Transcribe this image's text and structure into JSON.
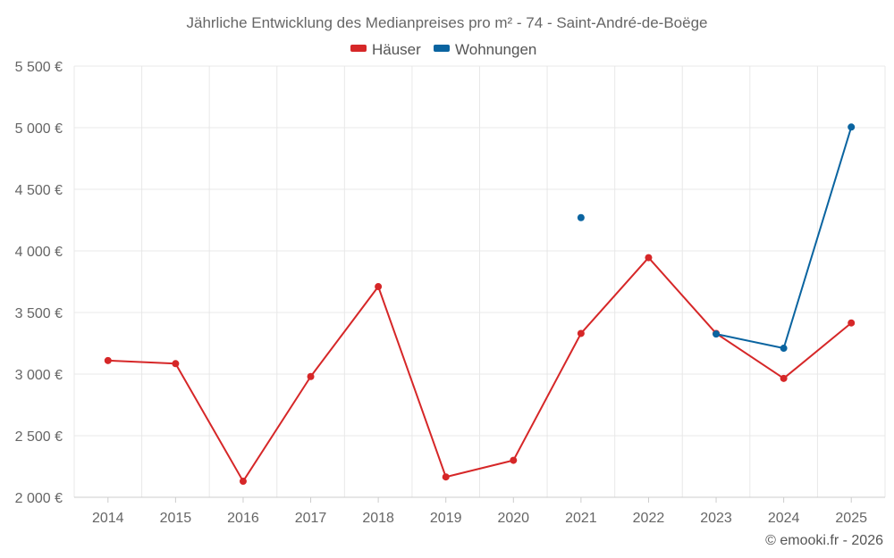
{
  "chart_data": {
    "type": "line",
    "title": "Jährliche Entwicklung des Medianpreises pro m² - 74 - Saint-André-de-Boëge",
    "categories": [
      "2014",
      "2015",
      "2016",
      "2017",
      "2018",
      "2019",
      "2020",
      "2021",
      "2022",
      "2023",
      "2024",
      "2025"
    ],
    "y_ticks": [
      "2 000 €",
      "2 500 €",
      "3 000 €",
      "3 500 €",
      "4 000 €",
      "4 500 €",
      "5 000 €",
      "5 500 €"
    ],
    "y_tick_values": [
      2000,
      2500,
      3000,
      3500,
      4000,
      4500,
      5000,
      5500
    ],
    "ylim": [
      2000,
      5500
    ],
    "grid": true,
    "legend_position": "top-center",
    "series": [
      {
        "name": "Häuser",
        "color": "#d62728",
        "values": [
          3110,
          3085,
          2130,
          2980,
          3710,
          2165,
          2300,
          3330,
          3945,
          3330,
          2965,
          3415
        ]
      },
      {
        "name": "Wohnungen",
        "color": "#0a64a0",
        "values": [
          null,
          null,
          null,
          null,
          null,
          null,
          null,
          4270,
          null,
          3325,
          3210,
          5005
        ]
      }
    ]
  },
  "credit": "© emooki.fr - 2026"
}
